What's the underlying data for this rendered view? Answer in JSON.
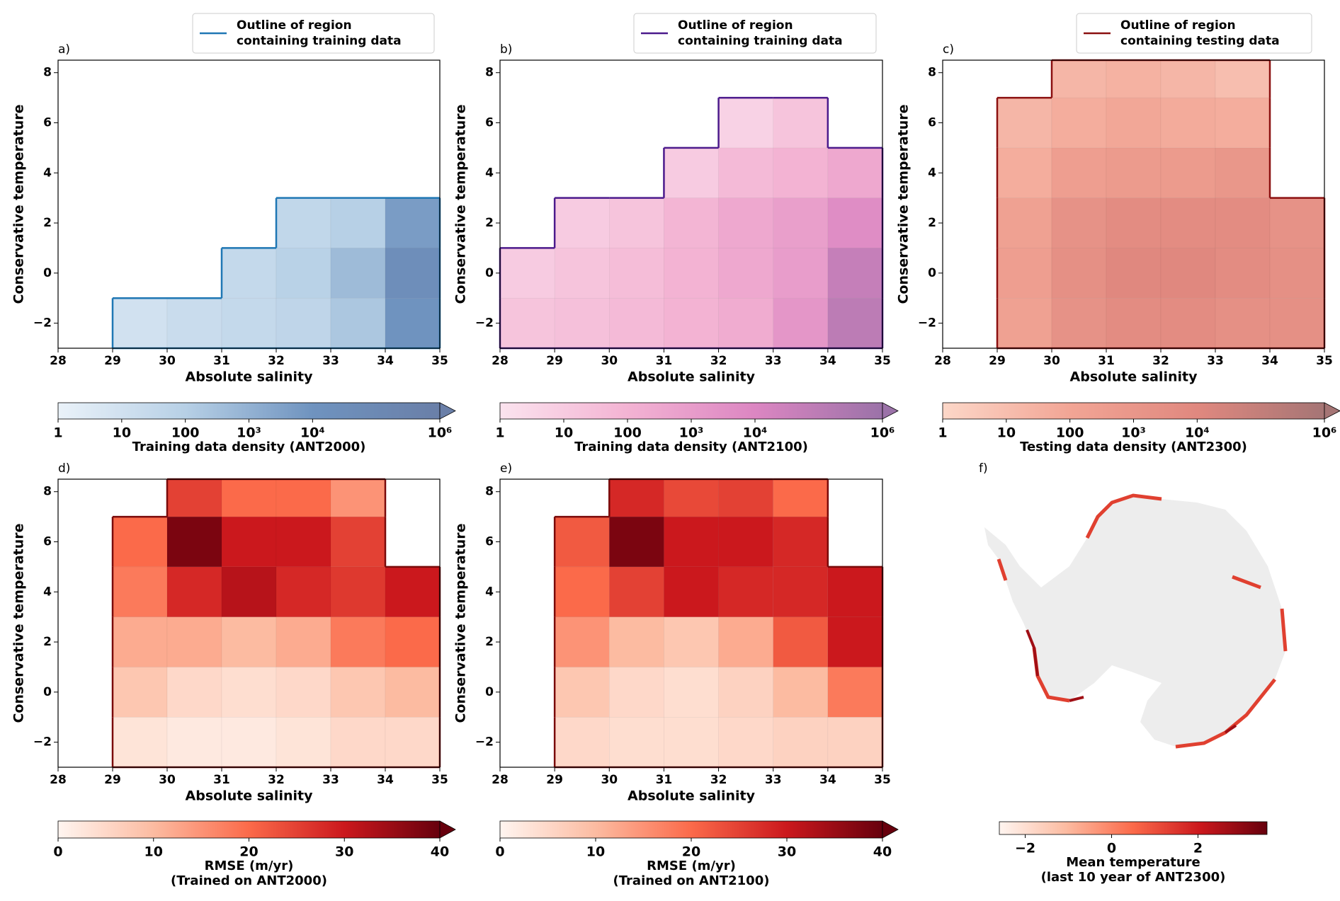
{
  "chart_data": [
    {
      "type": "heatmap",
      "panel_label": "a)",
      "xlabel": "Absolute salinity",
      "ylabel": "Conservative temperature",
      "xlim": [
        28,
        35
      ],
      "xticks": [
        28,
        29,
        30,
        31,
        32,
        33,
        34,
        35
      ],
      "ylim": [
        -3,
        8.5
      ],
      "yticks": [
        {
          "value": -2,
          "label": "−2"
        },
        0,
        2,
        4,
        6,
        8
      ],
      "x_bins": [
        28,
        29,
        30,
        31,
        32,
        33,
        34,
        35
      ],
      "y_bins": [
        -3,
        -1,
        1,
        3,
        5,
        7,
        8.5
      ],
      "values": [
        [
          null,
          10,
          20,
          30,
          50,
          200,
          10000
        ],
        [
          null,
          null,
          null,
          30,
          80,
          500,
          30000
        ],
        [
          null,
          null,
          null,
          null,
          40,
          100,
          5000
        ],
        [
          null,
          null,
          null,
          null,
          null,
          null,
          null
        ],
        [
          null,
          null,
          null,
          null,
          null,
          null,
          null
        ],
        [
          null,
          null,
          null,
          null,
          null,
          null,
          null
        ]
      ],
      "outline_color": "#1f77b4",
      "legend": {
        "lines": [
          "Outline of region",
          "containing training data"
        ],
        "color": "#1f77b4"
      },
      "colorbar": {
        "label_lines": [
          "Training data density (ANT2000)"
        ],
        "lim": [
          1,
          1000000
        ],
        "log": true,
        "ticks": [
          1,
          10,
          100,
          {
            "value": 1000,
            "label": "10³"
          },
          {
            "value": 10000,
            "label": "10⁴"
          },
          {
            "value": 1000000,
            "label": "10⁶"
          }
        ],
        "colors": [
          "#eaf2f9",
          "#b7d0e6",
          "#6f93bf",
          "#6a7fa8"
        ],
        "extend": true
      }
    },
    {
      "type": "heatmap",
      "panel_label": "b)",
      "xlabel": "Absolute salinity",
      "ylabel": "Conservative temperature",
      "xlim": [
        28,
        35
      ],
      "xticks": [
        28,
        29,
        30,
        31,
        32,
        33,
        34,
        35
      ],
      "ylim": [
        -3,
        8.5
      ],
      "yticks": [
        {
          "value": -2,
          "label": "−2"
        },
        0,
        2,
        4,
        6,
        8
      ],
      "x_bins": [
        28,
        29,
        30,
        31,
        32,
        33,
        34,
        35
      ],
      "y_bins": [
        -3,
        -1,
        1,
        3,
        5,
        7,
        8.5
      ],
      "values": [
        [
          20,
          30,
          50,
          100,
          200,
          2000,
          100000
        ],
        [
          10,
          20,
          40,
          100,
          300,
          1000,
          50000
        ],
        [
          null,
          10,
          20,
          80,
          300,
          800,
          5000
        ],
        [
          null,
          null,
          null,
          10,
          50,
          100,
          300
        ],
        [
          null,
          null,
          null,
          null,
          5,
          20,
          null
        ],
        [
          null,
          null,
          null,
          null,
          null,
          null,
          null
        ]
      ],
      "outline_color": "#4b1a8c",
      "legend": {
        "lines": [
          "Outline of region",
          "containing training data"
        ],
        "color": "#4b1a8c"
      },
      "colorbar": {
        "label_lines": [
          "Training data density (ANT2100)"
        ],
        "lim": [
          1,
          1000000
        ],
        "log": true,
        "ticks": [
          1,
          10,
          100,
          {
            "value": 1000,
            "label": "10³"
          },
          {
            "value": 10000,
            "label": "10⁴"
          },
          {
            "value": 1000000,
            "label": "10⁶"
          }
        ],
        "colors": [
          "#fbe3ee",
          "#f3b3d3",
          "#dc86c2",
          "#9b72a8"
        ],
        "extend": true
      }
    },
    {
      "type": "heatmap",
      "panel_label": "c)",
      "xlabel": "Absolute salinity",
      "ylabel": "Conservative temperature",
      "xlim": [
        28,
        35
      ],
      "xticks": [
        28,
        29,
        30,
        31,
        32,
        33,
        34,
        35
      ],
      "ylim": [
        -3,
        8.5
      ],
      "yticks": [
        {
          "value": -2,
          "label": "−2"
        },
        0,
        2,
        4,
        6,
        8
      ],
      "x_bins": [
        28,
        29,
        30,
        31,
        32,
        33,
        34,
        35
      ],
      "y_bins": [
        -3,
        -1,
        1,
        3,
        5,
        7,
        8.5
      ],
      "values": [
        [
          null,
          200,
          2000,
          5000,
          5000,
          3000,
          3000
        ],
        [
          null,
          300,
          3000,
          10000,
          10000,
          5000,
          3000
        ],
        [
          null,
          200,
          2000,
          5000,
          5000,
          5000,
          2000
        ],
        [
          null,
          50,
          300,
          500,
          500,
          1000,
          null
        ],
        [
          null,
          20,
          50,
          80,
          60,
          50,
          null
        ],
        [
          null,
          null,
          20,
          30,
          20,
          10,
          null
        ]
      ],
      "outline_color": "#8b1010",
      "legend": {
        "lines": [
          "Outline of region",
          "containing testing data"
        ],
        "color": "#8b1010"
      },
      "colorbar": {
        "label_lines": [
          "Testing data density (ANT2300)"
        ],
        "lim": [
          1,
          1000000
        ],
        "log": true,
        "ticks": [
          1,
          10,
          100,
          {
            "value": 1000,
            "label": "10³"
          },
          {
            "value": 10000,
            "label": "10⁴"
          },
          {
            "value": 1000000,
            "label": "10⁶"
          }
        ],
        "colors": [
          "#fcd7c8",
          "#f2a595",
          "#e0887f",
          "#a57575"
        ],
        "extend": true
      }
    },
    {
      "type": "heatmap",
      "panel_label": "d)",
      "xlabel": "Absolute salinity",
      "ylabel": "Conservative temperature",
      "xlim": [
        28,
        35
      ],
      "xticks": [
        28,
        29,
        30,
        31,
        32,
        33,
        34,
        35
      ],
      "ylim": [
        -3,
        8.5
      ],
      "yticks": [
        {
          "value": -2,
          "label": "−2"
        },
        0,
        2,
        4,
        6,
        8
      ],
      "x_bins": [
        28,
        29,
        30,
        31,
        32,
        33,
        34,
        35
      ],
      "y_bins": [
        -3,
        -1,
        1,
        3,
        5,
        7,
        8.5
      ],
      "values": [
        [
          null,
          3,
          2,
          2,
          3,
          5,
          5
        ],
        [
          null,
          8,
          5,
          4,
          5,
          8,
          10
        ],
        [
          null,
          12,
          12,
          10,
          12,
          18,
          20
        ],
        [
          null,
          18,
          28,
          32,
          28,
          26,
          30
        ],
        [
          null,
          20,
          38,
          30,
          30,
          25,
          null
        ],
        [
          null,
          null,
          25,
          20,
          20,
          15,
          null
        ]
      ],
      "outline_color": "#7a0a0a",
      "colorbar": {
        "label_lines": [
          "RMSE (m/yr)",
          "(Trained on ANT2000)"
        ],
        "lim": [
          0,
          40
        ],
        "log": false,
        "ticks": [
          0,
          10,
          20,
          30,
          40
        ],
        "colors": [
          "#fff5f0",
          "#fcbba1",
          "#fb6a4a",
          "#cb181d",
          "#67000d"
        ],
        "extend": true
      }
    },
    {
      "type": "heatmap",
      "panel_label": "e)",
      "xlabel": "Absolute salinity",
      "ylabel": "Conservative temperature",
      "xlim": [
        28,
        35
      ],
      "xticks": [
        28,
        29,
        30,
        31,
        32,
        33,
        34,
        35
      ],
      "ylim": [
        -3,
        8.5
      ],
      "yticks": [
        {
          "value": -2,
          "label": "−2"
        },
        0,
        2,
        4,
        6,
        8
      ],
      "x_bins": [
        28,
        29,
        30,
        31,
        32,
        33,
        34,
        35
      ],
      "y_bins": [
        -3,
        -1,
        1,
        3,
        5,
        7,
        8.5
      ],
      "values": [
        [
          null,
          5,
          4,
          4,
          5,
          6,
          6
        ],
        [
          null,
          8,
          5,
          4,
          6,
          10,
          18
        ],
        [
          null,
          15,
          10,
          8,
          12,
          22,
          30
        ],
        [
          null,
          20,
          25,
          30,
          28,
          28,
          30
        ],
        [
          null,
          22,
          38,
          30,
          30,
          28,
          null
        ],
        [
          null,
          null,
          28,
          24,
          25,
          20,
          null
        ]
      ],
      "outline_color": "#7a0a0a",
      "colorbar": {
        "label_lines": [
          "RMSE (m/yr)",
          "(Trained on ANT2100)"
        ],
        "lim": [
          0,
          40
        ],
        "log": false,
        "ticks": [
          0,
          10,
          20,
          30,
          40
        ],
        "colors": [
          "#fff5f0",
          "#fcbba1",
          "#fb6a4a",
          "#cb181d",
          "#67000d"
        ],
        "extend": true
      }
    },
    {
      "type": "map",
      "panel_label": "f)",
      "colorbar": {
        "label_lines": [
          "Mean temperature",
          "(last 10 year of ANT2300)"
        ],
        "lim": [
          -2.6,
          3.6
        ],
        "log": false,
        "ticks": [
          {
            "value": -2,
            "label": "−2"
          },
          0,
          2
        ],
        "colors": [
          "#fff5f0",
          "#fcbba1",
          "#fb6a4a",
          "#cb181d",
          "#67000d"
        ],
        "extend": false
      }
    }
  ]
}
